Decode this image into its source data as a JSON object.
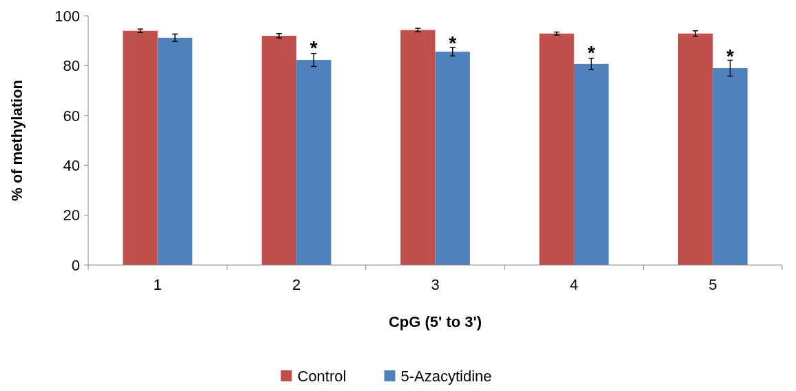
{
  "chart_data": {
    "type": "bar",
    "xlabel": "CpG (5' to 3')",
    "ylabel": "% of methylation",
    "categories": [
      "1",
      "2",
      "3",
      "4",
      "5"
    ],
    "series": [
      {
        "name": "Control",
        "color": "#c0504d",
        "values": [
          94,
          92,
          94.3,
          92.9,
          92.9
        ],
        "errors": [
          0.7,
          0.9,
          0.7,
          0.6,
          1.1
        ]
      },
      {
        "name": "5-Azacytidine",
        "color": "#4f81bd",
        "values": [
          91.2,
          82.3,
          85.6,
          80.7,
          79
        ],
        "errors": [
          1.5,
          2.6,
          1.7,
          2.3,
          3.2
        ]
      }
    ],
    "ylim": [
      0,
      100
    ],
    "yticks": [
      0,
      20,
      40,
      60,
      80,
      100
    ],
    "grid": false,
    "legend": "bottom",
    "annotations": [
      {
        "text": "*",
        "x": "2",
        "y": 90
      },
      {
        "text": "*",
        "x": "3",
        "y": 92
      },
      {
        "text": "*",
        "x": "4",
        "y": 88
      },
      {
        "text": "*",
        "x": "5",
        "y": 86.5
      }
    ]
  }
}
